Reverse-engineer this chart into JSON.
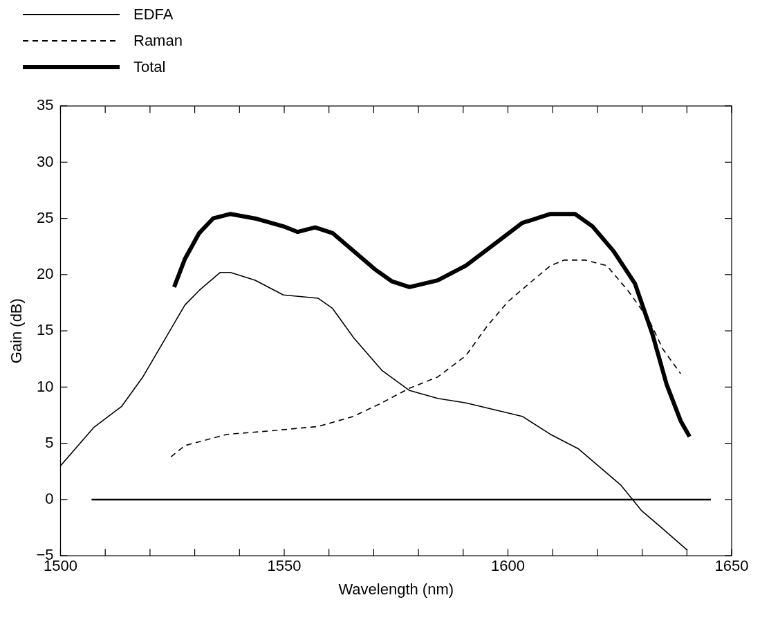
{
  "chart_data": {
    "type": "line",
    "xlabel": "Wavelength (nm)",
    "ylabel": "Gain (dB)",
    "xlim": [
      1500,
      1650
    ],
    "ylim": [
      -5,
      35
    ],
    "xticks": [
      1500,
      {
        "value": 1510,
        "label": null
      },
      {
        "value": 1520,
        "label": null
      },
      {
        "value": 1530,
        "label": null
      },
      {
        "value": 1540,
        "label": null
      },
      1550,
      {
        "value": 1560,
        "label": null
      },
      {
        "value": 1570,
        "label": null
      },
      {
        "value": 1580,
        "label": null
      },
      {
        "value": 1590,
        "label": null
      },
      1600,
      {
        "value": 1610,
        "label": null
      },
      {
        "value": 1620,
        "label": null
      },
      {
        "value": 1630,
        "label": null
      },
      {
        "value": 1640,
        "label": null
      },
      1650
    ],
    "yticks": [
      -5,
      0,
      5,
      10,
      15,
      20,
      25,
      30,
      35
    ],
    "grid": false,
    "legend": "top left",
    "marker": "none",
    "ref_lines": [
      {
        "axis": "y",
        "value": 0,
        "color": "#000000",
        "line_style": "solid"
      }
    ],
    "series": [
      {
        "name": "EDFA",
        "color": "#000000",
        "line_style": "solid",
        "x": [
          1500,
          1507.4,
          1513.7,
          1518.4,
          1523.1,
          1527.8,
          1531,
          1535.7,
          1538,
          1543.5,
          1549.8,
          1557.6,
          1560.8,
          1565.5,
          1571.8,
          1578,
          1584.3,
          1590.6,
          1596.9,
          1603.2,
          1609.5,
          1615.8,
          1620.5,
          1625.2,
          1629.9,
          1634.6,
          1640.1
        ],
        "values": [
          3.0,
          6.4,
          8.3,
          10.9,
          14.1,
          17.3,
          18.6,
          20.2,
          20.2,
          19.5,
          18.2,
          17.9,
          17.0,
          14.4,
          11.5,
          9.7,
          9.0,
          8.6,
          8.0,
          7.4,
          5.8,
          4.5,
          2.9,
          1.3,
          -1.0,
          -2.6,
          -4.5
        ]
      },
      {
        "name": "Raman",
        "color": "#000000",
        "line_style": "dashed",
        "x": [
          1524.7,
          1527.8,
          1537.2,
          1546.6,
          1557.6,
          1565.5,
          1571.8,
          1578,
          1584.3,
          1590.6,
          1595.3,
          1600,
          1604.7,
          1609.5,
          1612.6,
          1617.3,
          1622.1,
          1626.8,
          1631.5,
          1634.6,
          1638.6
        ],
        "values": [
          3.8,
          4.8,
          5.8,
          6.1,
          6.5,
          7.4,
          8.6,
          9.9,
          10.9,
          12.8,
          15.4,
          17.6,
          19.2,
          20.8,
          21.3,
          21.3,
          20.8,
          18.6,
          16.0,
          13.4,
          11.2
        ]
      },
      {
        "name": "Total",
        "color": "#000000",
        "line_style": "solid",
        "x": [
          1525.4,
          1527.8,
          1531,
          1534.1,
          1538,
          1543.5,
          1549.8,
          1553,
          1556.9,
          1560.8,
          1565.5,
          1570.2,
          1574.1,
          1578,
          1584.3,
          1590.6,
          1596.9,
          1603.2,
          1609.5,
          1615,
          1618.9,
          1623.6,
          1628.4,
          1632.3,
          1635.5,
          1638.6,
          1640.6
        ],
        "values": [
          18.9,
          21.4,
          23.7,
          25.0,
          25.4,
          25.0,
          24.3,
          23.8,
          24.2,
          23.7,
          22.1,
          20.5,
          19.4,
          18.9,
          19.5,
          20.8,
          22.7,
          24.6,
          25.4,
          25.4,
          24.3,
          22.1,
          19.2,
          14.7,
          10.2,
          7.0,
          5.6
        ]
      }
    ]
  }
}
